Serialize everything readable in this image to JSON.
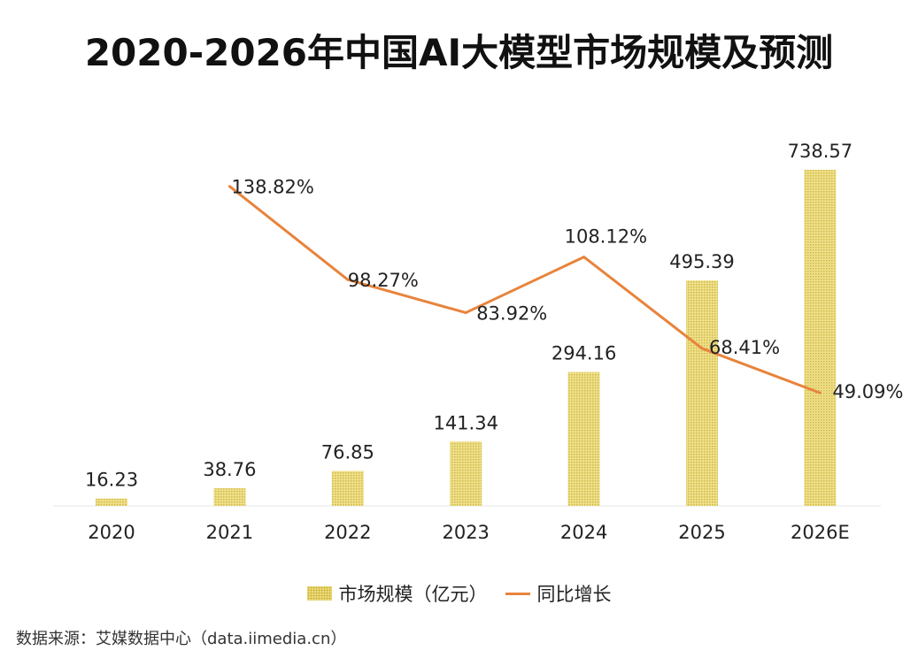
{
  "title": "2020-2026年中国AI大模型市场规模及预测",
  "source": "数据来源：艾媒数据中心（data.iimedia.cn）",
  "chart_data": {
    "type": "bar+line",
    "categories": [
      "2020",
      "2021",
      "2022",
      "2023",
      "2024",
      "2025",
      "2026E"
    ],
    "series": [
      {
        "name": "市场规模（亿元）",
        "type": "bar",
        "axis": "left",
        "color": "#ecd977",
        "values": [
          16.23,
          38.76,
          76.85,
          141.34,
          294.16,
          495.39,
          738.57
        ],
        "labels": [
          "16.23",
          "38.76",
          "76.85",
          "141.34",
          "294.16",
          "495.39",
          "738.57"
        ]
      },
      {
        "name": "同比增长",
        "type": "line",
        "axis": "right",
        "color": "#e8843c",
        "values": [
          null,
          138.82,
          98.27,
          83.92,
          108.12,
          68.41,
          49.09
        ],
        "labels": [
          "",
          "138.82%",
          "98.27%",
          "83.92%",
          "108.12%",
          "68.41%",
          "49.09%"
        ]
      }
    ],
    "ylim": [
      0,
      750
    ],
    "y2lim": [
      0,
      146
    ],
    "axes_visible": false,
    "grid": false,
    "legend": "bottom"
  }
}
